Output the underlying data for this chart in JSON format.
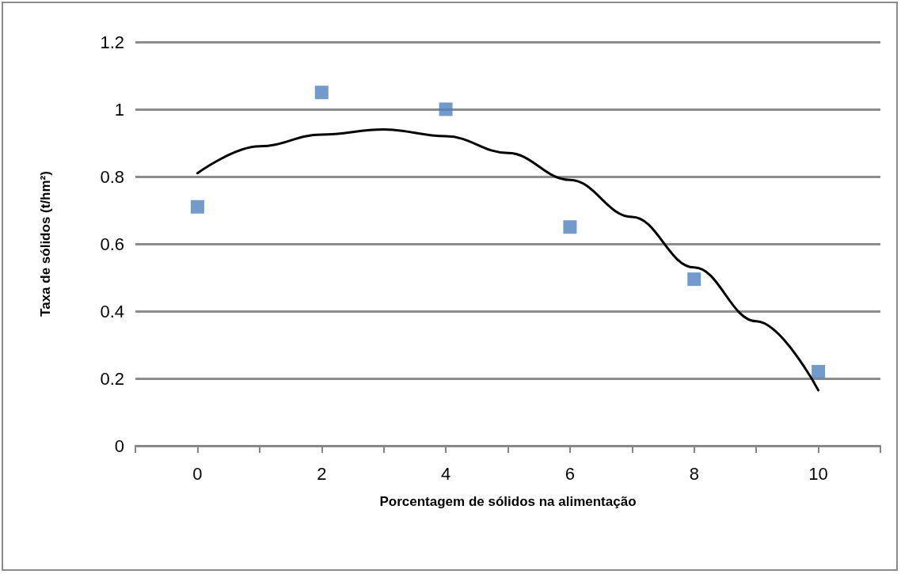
{
  "chart_data": {
    "type": "scatter",
    "xlabel": "Porcentagem de sólidos na alimentação",
    "ylabel": "Taxa de sólidos (t/hm²)",
    "xlim": [
      -1,
      11
    ],
    "xticks": [
      {
        "value": -1,
        "label": null
      },
      0,
      {
        "value": 1,
        "label": null
      },
      2,
      {
        "value": 3,
        "label": null
      },
      4,
      {
        "value": 5,
        "label": null
      },
      6,
      {
        "value": 7,
        "label": null
      },
      8,
      {
        "value": 9,
        "label": null
      },
      10,
      {
        "value": 11,
        "label": null
      }
    ],
    "ylim": [
      0,
      1.2
    ],
    "yticks": [
      0,
      0.2,
      0.4,
      0.6,
      0.8,
      1,
      1.2
    ],
    "grid": "y",
    "marker": "square",
    "series": [
      {
        "color": "#4f81bd",
        "x": [
          0,
          2,
          4,
          6,
          8,
          10
        ],
        "values": [
          0.71,
          1.05,
          1.0,
          0.65,
          0.495,
          0.22
        ]
      },
      {
        "type": "line",
        "color": "#000000",
        "marker": "none",
        "line_style": "solid",
        "x": [
          0,
          1,
          2,
          3,
          4,
          5,
          6,
          7,
          8,
          9,
          10
        ],
        "values": [
          0.81,
          0.89,
          0.925,
          0.94,
          0.92,
          0.87,
          0.79,
          0.68,
          0.53,
          0.37,
          0.165
        ]
      }
    ]
  }
}
